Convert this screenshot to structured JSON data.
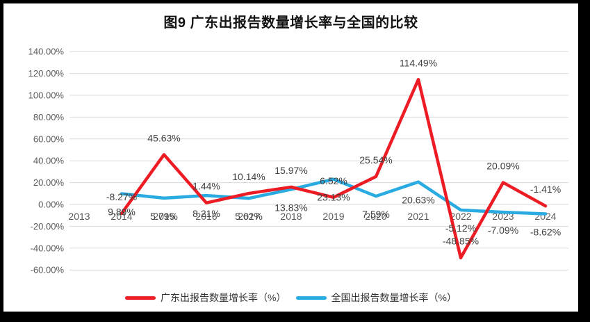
{
  "chart_data": {
    "type": "line",
    "title": "图9  广东出报告数量增长率与全国的比较",
    "categories": [
      "2013",
      "2014",
      "2015",
      "2016",
      "2017",
      "2018",
      "2019",
      "2020",
      "2021",
      "2022",
      "2023",
      "2024"
    ],
    "series": [
      {
        "name": "广东出报告数量增长率（%）",
        "color": "#ed1c24",
        "label_position": "above",
        "values": [
          null,
          -8.27,
          45.63,
          1.44,
          10.14,
          15.97,
          6.52,
          25.54,
          114.49,
          -48.85,
          20.09,
          -1.41
        ],
        "labels": [
          null,
          "-8.27%",
          "45.63%",
          "1.44%",
          "10.14%",
          "15.97%",
          "6.52%",
          "25.54%",
          "114.49%",
          "-48.85%",
          "20.09%",
          "-1.41%"
        ]
      },
      {
        "name": "全国出报告数量增长率（%）",
        "color": "#29abe2",
        "label_position": "below",
        "values": [
          null,
          9.89,
          5.79,
          8.21,
          5.62,
          13.83,
          23.13,
          7.59,
          20.63,
          -5.12,
          -7.09,
          -8.62
        ],
        "labels": [
          null,
          "9.89%",
          "5.79%",
          "8.21%",
          "5.62%",
          "13.83%",
          "23.13%",
          "7.59%",
          "20.63%",
          "-5.12%",
          "-7.09%",
          "-8.62%"
        ]
      }
    ],
    "y_axis": {
      "min": -60,
      "max": 140,
      "step": 20,
      "tick_labels": [
        "140.00%",
        "120.00%",
        "100.00%",
        "80.00%",
        "60.00%",
        "40.00%",
        "20.00%",
        "0.00%",
        "-20.00%",
        "-40.00%",
        "-60.00%"
      ]
    },
    "grid": true,
    "legend_position": "bottom",
    "colors": {
      "grid": "#d9d9d9",
      "axis_text": "#595959",
      "data_label_text": "#404040",
      "frame": "#000000",
      "background": "#ffffff"
    }
  }
}
